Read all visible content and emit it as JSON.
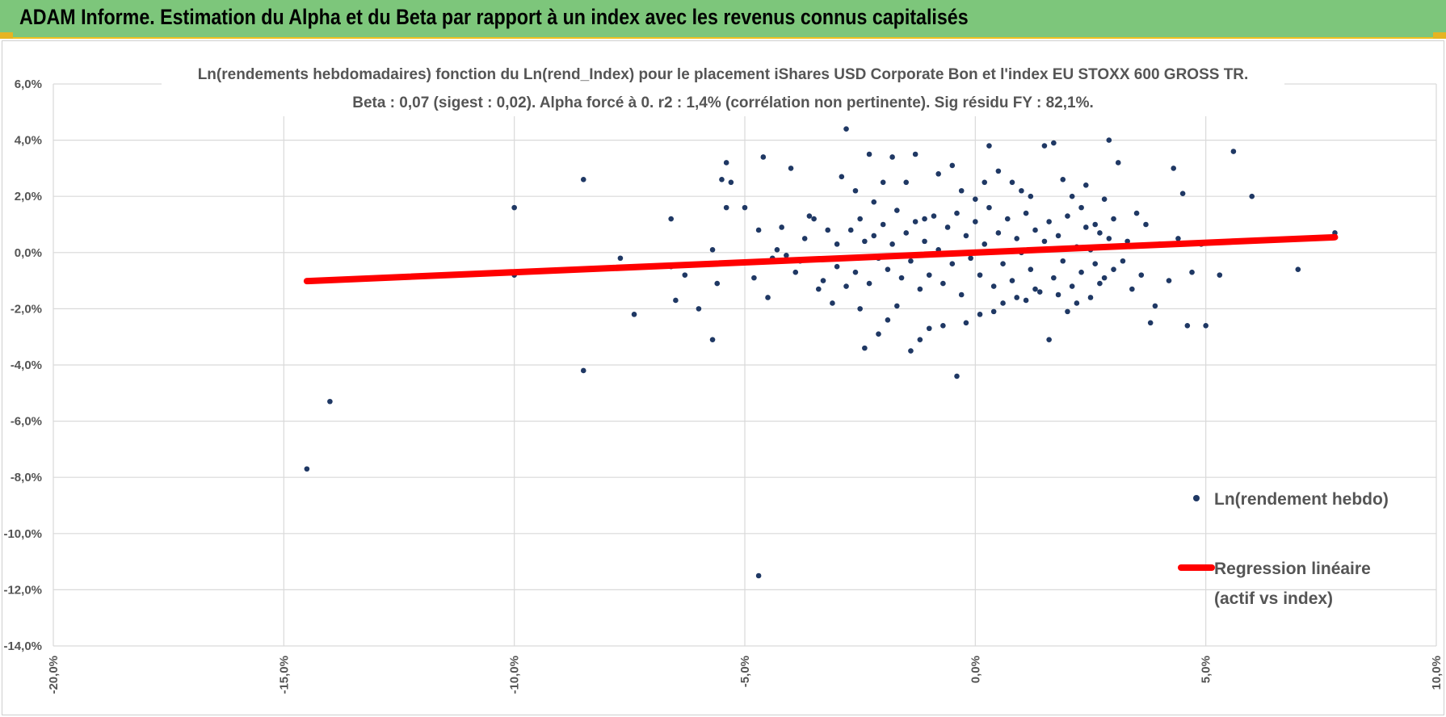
{
  "header": {
    "title": "ADAM Informe. Estimation du Alpha et du Beta par rapport à un index avec les revenus connus capitalisés"
  },
  "colors": {
    "header_bg": "#7dc67b",
    "accent_corner": "#e6b422",
    "points": "#1f3864",
    "regression": "#ff0000",
    "grid": "#d9d9d9",
    "text": "#555555"
  },
  "chart_data": {
    "type": "scatter",
    "title_line1": "Ln(rendements hebdomadaires) fonction du Ln(rend_Index) pour le placement iShares USD Corporate Bon et l'index EU STOXX 600 GROSS TR.",
    "title_line2": "Beta : 0,07 (sigest : 0,02). Alpha forcé à 0. r2 : 1,4% (corrélation non pertinente). Sig résidu FY : 82,1%.",
    "xlim": [
      -0.2,
      0.1
    ],
    "ylim": [
      -0.14,
      0.06
    ],
    "x_ticks": [
      -0.2,
      -0.15,
      -0.1,
      -0.05,
      0.0,
      0.05,
      0.1
    ],
    "x_tick_labels": [
      "-20,0%",
      "-15,0%",
      "-10,0%",
      "-5,0%",
      "0,0%",
      "5,0%",
      "10,0%"
    ],
    "y_ticks": [
      0.06,
      0.04,
      0.02,
      0.0,
      -0.02,
      -0.04,
      -0.06,
      -0.08,
      -0.1,
      -0.12,
      -0.14
    ],
    "y_tick_labels": [
      "6,0%",
      "4,0%",
      "2,0%",
      "0,0%",
      "-2,0%",
      "-4,0%",
      "-6,0%",
      "-8,0%",
      "-10,0%",
      "-12,0%",
      "-14,0%"
    ],
    "grid": true,
    "legend_position": "right",
    "series": [
      {
        "name": "Ln(rendement hebdo)",
        "kind": "points",
        "points": [
          [
            -0.145,
            -0.077
          ],
          [
            -0.14,
            -0.053
          ],
          [
            -0.1,
            0.016
          ],
          [
            -0.1,
            -0.008
          ],
          [
            -0.085,
            0.026
          ],
          [
            -0.085,
            -0.042
          ],
          [
            -0.077,
            -0.002
          ],
          [
            -0.074,
            -0.022
          ],
          [
            -0.066,
            0.012
          ],
          [
            -0.066,
            -0.005
          ],
          [
            -0.065,
            -0.017
          ],
          [
            -0.063,
            -0.008
          ],
          [
            -0.06,
            -0.02
          ],
          [
            -0.057,
            -0.031
          ],
          [
            -0.057,
            0.001
          ],
          [
            -0.056,
            -0.011
          ],
          [
            -0.055,
            0.026
          ],
          [
            -0.054,
            0.032
          ],
          [
            -0.054,
            0.016
          ],
          [
            -0.053,
            0.025
          ],
          [
            -0.05,
            0.016
          ],
          [
            -0.048,
            -0.009
          ],
          [
            -0.047,
            0.008
          ],
          [
            -0.047,
            -0.115
          ],
          [
            -0.046,
            0.034
          ],
          [
            -0.045,
            -0.016
          ],
          [
            -0.044,
            -0.002
          ],
          [
            -0.043,
            0.001
          ],
          [
            -0.042,
            0.009
          ],
          [
            -0.041,
            -0.001
          ],
          [
            -0.04,
            0.03
          ],
          [
            -0.039,
            -0.007
          ],
          [
            -0.038,
            -0.003
          ],
          [
            -0.037,
            0.005
          ],
          [
            -0.036,
            0.013
          ],
          [
            -0.035,
            0.012
          ],
          [
            -0.034,
            -0.013
          ],
          [
            -0.033,
            -0.01
          ],
          [
            -0.032,
            0.008
          ],
          [
            -0.031,
            -0.018
          ],
          [
            -0.03,
            0.003
          ],
          [
            -0.029,
            0.027
          ],
          [
            -0.028,
            0.044
          ],
          [
            -0.028,
            -0.012
          ],
          [
            -0.026,
            0.022
          ],
          [
            -0.025,
            -0.02
          ],
          [
            -0.024,
            -0.034
          ],
          [
            -0.023,
            0.035
          ],
          [
            -0.022,
            0.018
          ],
          [
            -0.021,
            -0.029
          ],
          [
            -0.02,
            0.025
          ],
          [
            -0.019,
            -0.024
          ],
          [
            -0.018,
            0.034
          ],
          [
            -0.017,
            -0.019
          ],
          [
            -0.015,
            0.025
          ],
          [
            -0.014,
            -0.035
          ],
          [
            -0.013,
            0.035
          ],
          [
            -0.012,
            -0.031
          ],
          [
            -0.011,
            0.012
          ],
          [
            -0.01,
            -0.027
          ],
          [
            -0.008,
            0.028
          ],
          [
            -0.007,
            -0.026
          ],
          [
            -0.005,
            0.031
          ],
          [
            -0.004,
            -0.044
          ],
          [
            -0.003,
            0.022
          ],
          [
            -0.002,
            -0.025
          ],
          [
            0.0,
            0.019
          ],
          [
            0.001,
            -0.022
          ],
          [
            0.002,
            0.025
          ],
          [
            0.003,
            0.038
          ],
          [
            0.004,
            -0.021
          ],
          [
            0.005,
            0.029
          ],
          [
            0.006,
            -0.018
          ],
          [
            0.008,
            0.025
          ],
          [
            0.009,
            -0.016
          ],
          [
            0.01,
            0.022
          ],
          [
            0.011,
            -0.017
          ],
          [
            0.012,
            0.02
          ],
          [
            0.013,
            -0.013
          ],
          [
            0.015,
            0.038
          ],
          [
            0.016,
            -0.031
          ],
          [
            0.017,
            0.039
          ],
          [
            0.018,
            -0.015
          ],
          [
            0.019,
            0.026
          ],
          [
            0.02,
            -0.021
          ],
          [
            0.021,
            0.02
          ],
          [
            0.022,
            -0.018
          ],
          [
            0.023,
            0.016
          ],
          [
            0.024,
            0.024
          ],
          [
            0.025,
            -0.016
          ],
          [
            0.026,
            0.01
          ],
          [
            0.027,
            -0.011
          ],
          [
            0.028,
            0.019
          ],
          [
            0.029,
            0.04
          ],
          [
            0.03,
            -0.006
          ],
          [
            0.031,
            0.032
          ],
          [
            0.033,
            0.004
          ],
          [
            0.034,
            -0.013
          ],
          [
            0.035,
            0.014
          ],
          [
            0.036,
            -0.008
          ],
          [
            0.037,
            0.01
          ],
          [
            0.038,
            -0.025
          ],
          [
            0.039,
            -0.019
          ],
          [
            0.04,
            0.003
          ],
          [
            0.042,
            -0.01
          ],
          [
            0.043,
            0.03
          ],
          [
            0.044,
            0.005
          ],
          [
            0.045,
            0.021
          ],
          [
            0.046,
            -0.026
          ],
          [
            0.047,
            -0.007
          ],
          [
            0.049,
            0.003
          ],
          [
            0.05,
            -0.026
          ],
          [
            0.053,
            -0.008
          ],
          [
            0.055,
            0.004
          ],
          [
            0.056,
            0.036
          ],
          [
            0.06,
            0.02
          ],
          [
            0.07,
            -0.006
          ],
          [
            0.078,
            0.007
          ],
          [
            -0.03,
            -0.005
          ],
          [
            -0.027,
            0.008
          ],
          [
            -0.026,
            -0.007
          ],
          [
            -0.025,
            0.012
          ],
          [
            -0.024,
            0.004
          ],
          [
            -0.023,
            -0.011
          ],
          [
            -0.022,
            0.006
          ],
          [
            -0.021,
            -0.002
          ],
          [
            -0.02,
            0.01
          ],
          [
            -0.019,
            -0.006
          ],
          [
            -0.018,
            0.003
          ],
          [
            -0.017,
            0.015
          ],
          [
            -0.016,
            -0.009
          ],
          [
            -0.015,
            0.007
          ],
          [
            -0.014,
            -0.003
          ],
          [
            -0.013,
            0.011
          ],
          [
            -0.012,
            -0.013
          ],
          [
            -0.011,
            0.004
          ],
          [
            -0.01,
            -0.008
          ],
          [
            -0.009,
            0.013
          ],
          [
            -0.008,
            0.001
          ],
          [
            -0.007,
            -0.011
          ],
          [
            -0.006,
            0.009
          ],
          [
            -0.005,
            -0.004
          ],
          [
            -0.004,
            0.014
          ],
          [
            -0.003,
            -0.015
          ],
          [
            -0.002,
            0.006
          ],
          [
            -0.001,
            -0.002
          ],
          [
            0.0,
            0.011
          ],
          [
            0.001,
            -0.008
          ],
          [
            0.002,
            0.003
          ],
          [
            0.003,
            0.016
          ],
          [
            0.004,
            -0.012
          ],
          [
            0.005,
            0.007
          ],
          [
            0.006,
            -0.004
          ],
          [
            0.007,
            0.012
          ],
          [
            0.008,
            -0.01
          ],
          [
            0.009,
            0.005
          ],
          [
            0.01,
            0.0
          ],
          [
            0.011,
            0.014
          ],
          [
            0.012,
            -0.006
          ],
          [
            0.013,
            0.008
          ],
          [
            0.014,
            -0.014
          ],
          [
            0.015,
            0.004
          ],
          [
            0.016,
            0.011
          ],
          [
            0.017,
            -0.009
          ],
          [
            0.018,
            0.006
          ],
          [
            0.019,
            -0.003
          ],
          [
            0.02,
            0.013
          ],
          [
            0.021,
            -0.012
          ],
          [
            0.022,
            0.002
          ],
          [
            0.023,
            -0.007
          ],
          [
            0.024,
            0.009
          ],
          [
            0.025,
            0.001
          ],
          [
            0.026,
            -0.004
          ],
          [
            0.027,
            0.007
          ],
          [
            0.028,
            -0.009
          ],
          [
            0.029,
            0.005
          ],
          [
            0.03,
            0.012
          ],
          [
            0.032,
            -0.003
          ]
        ]
      },
      {
        "name": "Regression linéaire\n(actif vs index)",
        "kind": "line",
        "slope": 0.07,
        "intercept": 0.0,
        "x_range": [
          -0.145,
          0.078
        ]
      }
    ],
    "legend": {
      "points_label": "Ln(rendement hebdo)",
      "line_label_1": "Regression linéaire",
      "line_label_2": "(actif vs index)"
    }
  }
}
